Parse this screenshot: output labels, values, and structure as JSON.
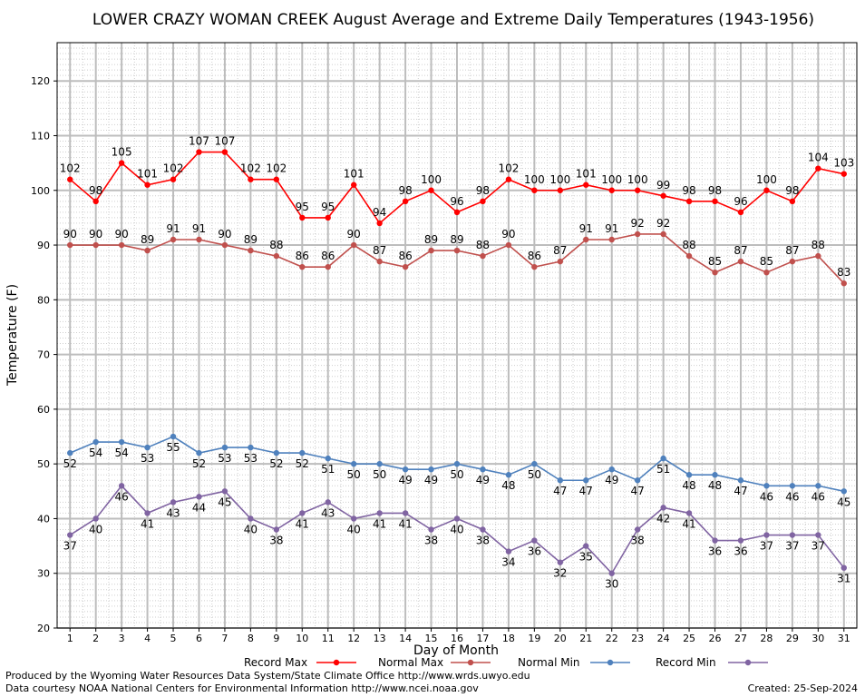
{
  "chart_data": {
    "type": "line",
    "title": "LOWER CRAZY WOMAN CREEK August Average and Extreme Daily Temperatures (1943-1956)",
    "xlabel": "Day of Month",
    "ylabel": "Temperature (F)",
    "x": [
      1,
      2,
      3,
      4,
      5,
      6,
      7,
      8,
      9,
      10,
      11,
      12,
      13,
      14,
      15,
      16,
      17,
      18,
      19,
      20,
      21,
      22,
      23,
      24,
      25,
      26,
      27,
      28,
      29,
      30,
      31
    ],
    "xlim": [
      0.5,
      31.5
    ],
    "ylim": [
      20,
      127
    ],
    "yticks": [
      20,
      30,
      40,
      50,
      60,
      70,
      80,
      90,
      100,
      110,
      120
    ],
    "grid": true,
    "legend_position": "bottom",
    "series": [
      {
        "name": "Record Max",
        "color": "#ff0000",
        "label_pos": "above",
        "values": [
          102,
          98,
          105,
          101,
          102,
          107,
          107,
          102,
          102,
          95,
          95,
          101,
          94,
          98,
          100,
          96,
          98,
          102,
          100,
          100,
          101,
          100,
          100,
          99,
          98,
          98,
          96,
          100,
          98,
          104,
          103
        ]
      },
      {
        "name": "Normal Max",
        "color": "#c0504d",
        "label_pos": "above",
        "values": [
          90,
          90,
          90,
          89,
          91,
          91,
          90,
          89,
          88,
          86,
          86,
          90,
          87,
          86,
          89,
          89,
          88,
          90,
          86,
          87,
          91,
          91,
          92,
          92,
          88,
          85,
          87,
          85,
          87,
          88,
          83
        ]
      },
      {
        "name": "Normal Min",
        "color": "#4f81bd",
        "label_pos": "below",
        "values": [
          52,
          54,
          54,
          53,
          55,
          52,
          53,
          53,
          52,
          52,
          51,
          50,
          50,
          49,
          49,
          50,
          49,
          48,
          50,
          47,
          47,
          49,
          47,
          51,
          48,
          48,
          47,
          46,
          46,
          46,
          45
        ]
      },
      {
        "name": "Record Min",
        "color": "#8064a2",
        "label_pos": "below",
        "values": [
          37,
          40,
          46,
          41,
          43,
          44,
          45,
          40,
          38,
          41,
          43,
          40,
          41,
          41,
          38,
          40,
          38,
          34,
          36,
          32,
          35,
          30,
          38,
          42,
          41,
          36,
          36,
          37,
          37,
          37,
          31
        ]
      }
    ]
  },
  "footer": {
    "produced_by": "Produced by the Wyoming Water Resources Data System/State Climate Office http://www.wrds.uwyo.edu",
    "data_courtesy": "Data courtesy NOAA National Centers for Environmental Information http://www.ncei.noaa.gov",
    "created": "Created:  25-Sep-2024"
  }
}
